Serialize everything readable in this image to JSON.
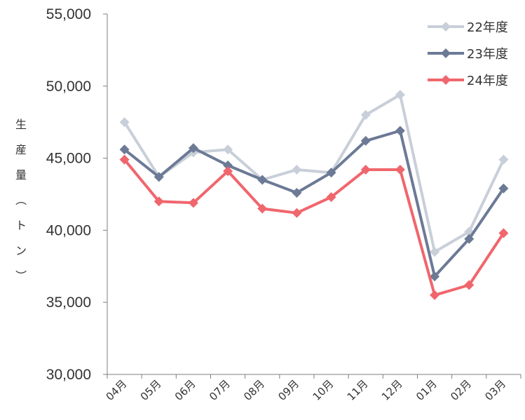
{
  "chart_data": {
    "type": "line",
    "title": "",
    "xlabel": "",
    "ylabel": "生産量（トン）",
    "categories": [
      "04月",
      "05月",
      "06月",
      "07月",
      "08月",
      "09月",
      "10月",
      "11月",
      "12月",
      "01月",
      "02月",
      "03月"
    ],
    "ylim": [
      30000,
      55000
    ],
    "yticks": [
      "30,000",
      "35,000",
      "40,000",
      "45,000",
      "50,000",
      "55,000"
    ],
    "ytick_values": [
      30000,
      35000,
      40000,
      45000,
      50000,
      55000
    ],
    "grid": false,
    "legend_position": "top-right",
    "series": [
      {
        "name": "22年度",
        "color": "#c9cfd9",
        "values": [
          47500,
          43700,
          45400,
          45600,
          43500,
          44200,
          44000,
          48000,
          49400,
          38500,
          39900,
          44900
        ]
      },
      {
        "name": "23年度",
        "color": "#6c7a96",
        "values": [
          45600,
          43700,
          45700,
          44500,
          43500,
          42600,
          44000,
          46200,
          46900,
          36800,
          39400,
          42900
        ]
      },
      {
        "name": "24年度",
        "color": "#f0666d",
        "values": [
          44900,
          42000,
          41900,
          44100,
          41500,
          41200,
          42300,
          44200,
          44200,
          35500,
          36200,
          39800
        ]
      }
    ]
  }
}
